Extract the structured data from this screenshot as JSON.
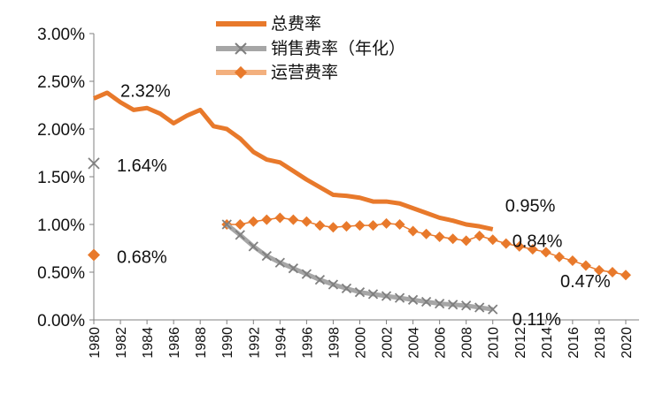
{
  "chart_data": {
    "type": "line",
    "title": "",
    "xlabel": "",
    "ylabel": "",
    "xlim": [
      1980,
      2021
    ],
    "ylim": [
      0,
      3
    ],
    "y_ticks": [
      "0.00%",
      "0.50%",
      "1.00%",
      "1.50%",
      "2.00%",
      "2.50%",
      "3.00%"
    ],
    "x_ticks": [
      "1980",
      "1982",
      "1984",
      "1986",
      "1988",
      "1990",
      "1992",
      "1994",
      "1996",
      "1998",
      "2000",
      "2002",
      "2004",
      "2006",
      "2008",
      "2010",
      "2012",
      "2014",
      "2016",
      "2018",
      "2020"
    ],
    "legend_position": "top-center",
    "colors": {
      "total": "#E8792B",
      "sales": "#A6A6A6",
      "sales_marker": "#7F7F7F",
      "ops": "#E8792B",
      "ops_legend_line": "#F3B07E"
    },
    "series": [
      {
        "key": "total",
        "name": "总费率",
        "marker": "none",
        "x": [
          1980,
          1981,
          1982,
          1983,
          1984,
          1985,
          1986,
          1987,
          1988,
          1989,
          1990,
          1991,
          1992,
          1993,
          1994,
          1995,
          1996,
          1997,
          1998,
          1999,
          2000,
          2001,
          2002,
          2003,
          2004,
          2005,
          2006,
          2007,
          2008,
          2009,
          2010
        ],
        "values": [
          2.32,
          2.38,
          2.28,
          2.2,
          2.22,
          2.16,
          2.06,
          2.14,
          2.2,
          2.03,
          2.0,
          1.9,
          1.76,
          1.68,
          1.65,
          1.56,
          1.47,
          1.39,
          1.31,
          1.3,
          1.28,
          1.24,
          1.24,
          1.22,
          1.17,
          1.12,
          1.07,
          1.04,
          1.0,
          0.98,
          0.95
        ]
      },
      {
        "key": "sales",
        "name": "销售费率（年化）",
        "marker": "x",
        "x": [
          1990,
          1991,
          1992,
          1993,
          1994,
          1995,
          1996,
          1997,
          1998,
          1999,
          2000,
          2001,
          2002,
          2003,
          2004,
          2005,
          2006,
          2007,
          2008,
          2009,
          2010
        ],
        "values": [
          1.0,
          0.89,
          0.77,
          0.67,
          0.6,
          0.54,
          0.48,
          0.42,
          0.37,
          0.33,
          0.29,
          0.27,
          0.25,
          0.23,
          0.21,
          0.19,
          0.17,
          0.16,
          0.15,
          0.13,
          0.11
        ]
      },
      {
        "key": "ops",
        "name": "运营费率",
        "marker": "diamond",
        "x": [
          1990,
          1991,
          1992,
          1993,
          1994,
          1995,
          1996,
          1997,
          1998,
          1999,
          2000,
          2001,
          2002,
          2003,
          2004,
          2005,
          2006,
          2007,
          2008,
          2009,
          2010,
          2011,
          2012,
          2013,
          2014,
          2015,
          2016,
          2017,
          2018,
          2019,
          2020
        ],
        "values": [
          1.0,
          1.0,
          1.03,
          1.05,
          1.07,
          1.05,
          1.03,
          0.99,
          0.97,
          0.98,
          0.99,
          0.99,
          1.01,
          1.0,
          0.93,
          0.9,
          0.87,
          0.85,
          0.83,
          0.88,
          0.84,
          0.8,
          0.77,
          0.74,
          0.71,
          0.66,
          0.62,
          0.57,
          0.52,
          0.5,
          0.47
        ]
      }
    ],
    "isolated_points": [
      {
        "series": "sales",
        "x": 1980,
        "value": 1.64,
        "label": "1.64%"
      },
      {
        "series": "ops",
        "x": 1980,
        "value": 0.68,
        "label": "0.68%"
      }
    ],
    "annotations": [
      {
        "text": "2.32%",
        "series": "total",
        "x": 1980
      },
      {
        "text": "0.95%",
        "series": "total",
        "x": 2010
      },
      {
        "text": "0.84%",
        "series": "ops",
        "x": 2010
      },
      {
        "text": "0.47%",
        "series": "ops",
        "x": 2020
      },
      {
        "text": "0.11%",
        "series": "sales",
        "x": 2010
      }
    ]
  }
}
